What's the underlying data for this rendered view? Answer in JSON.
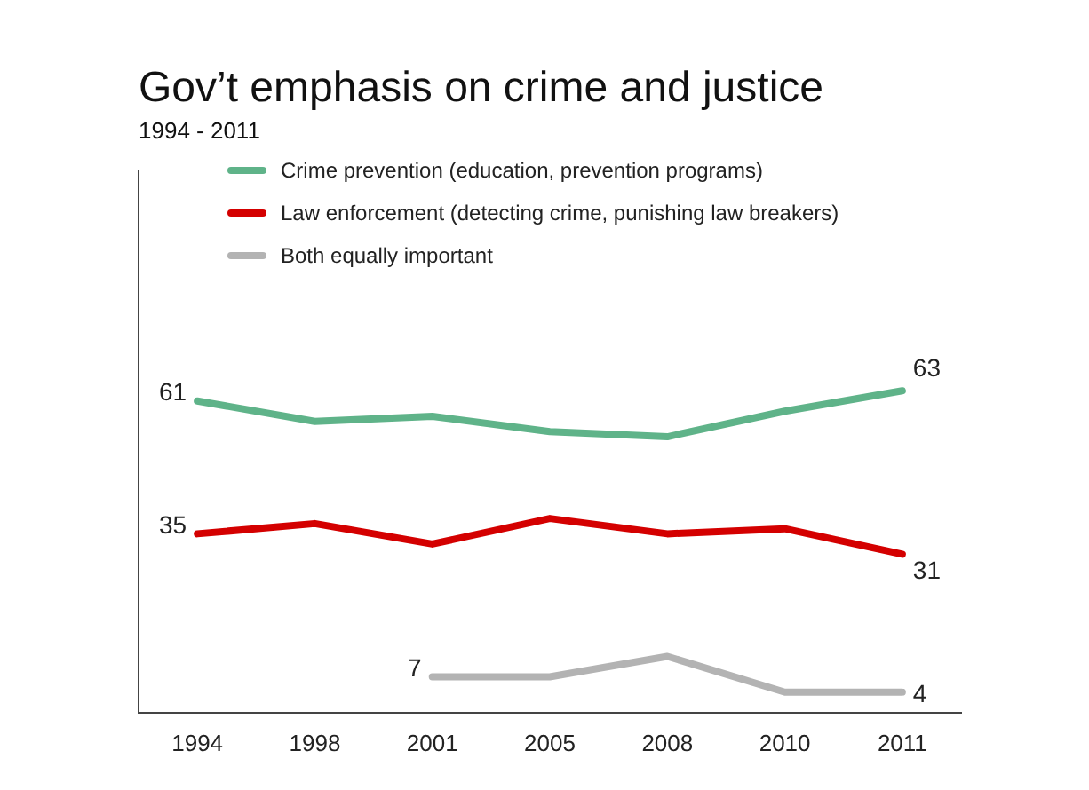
{
  "chart_data": {
    "type": "line",
    "title": "Gov’t emphasis on crime and justice",
    "subtitle": "1994 - 2011",
    "categories": [
      "1994",
      "1998",
      "2001",
      "2005",
      "2008",
      "2010",
      "2011"
    ],
    "series": [
      {
        "name": "Crime prevention (education, prevention programs)",
        "color": "#5fb389",
        "values": [
          61,
          57,
          58,
          55,
          54,
          59,
          63
        ],
        "value_labels": [
          "61",
          null,
          null,
          null,
          null,
          null,
          "63"
        ]
      },
      {
        "name": "Law enforcement (detecting crime, punishing law breakers)",
        "color": "#d40000",
        "values": [
          35,
          37,
          33,
          38,
          35,
          36,
          31
        ],
        "value_labels": [
          "35",
          null,
          null,
          null,
          null,
          null,
          "31"
        ]
      },
      {
        "name": "Both equally important",
        "color": "#b3b3b3",
        "values": [
          null,
          null,
          7,
          7,
          11,
          4,
          4
        ],
        "value_labels": [
          null,
          null,
          "7",
          null,
          null,
          null,
          "4"
        ]
      }
    ],
    "ylim": [
      0,
      106
    ],
    "tick_labels": "x",
    "grid": false,
    "legend": "top",
    "marker": "none",
    "line_style": "solid"
  }
}
